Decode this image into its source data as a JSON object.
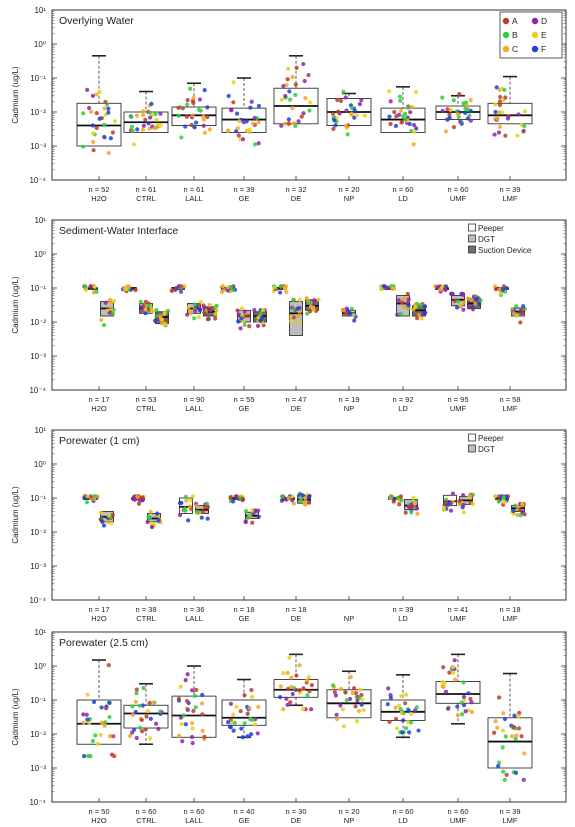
{
  "figure": {
    "ylabel": "Cadmium (ug/L)",
    "y_tick_labels": [
      "10⁻⁴",
      "10⁻³",
      "10⁻²",
      "10⁻¹",
      "10⁰",
      "10¹"
    ],
    "categories": [
      "H2O",
      "CTRL",
      "LALL",
      "GE",
      "DE",
      "NP",
      "LD",
      "UMF",
      "LMF"
    ],
    "site_legend": [
      {
        "label": "A",
        "color": "#c0392b"
      },
      {
        "label": "B",
        "color": "#2ecc40"
      },
      {
        "label": "C",
        "color": "#f5a623"
      },
      {
        "label": "D",
        "color": "#8e24aa"
      },
      {
        "label": "E",
        "color": "#e6d21a"
      },
      {
        "label": "F",
        "color": "#1f3fd6"
      }
    ]
  },
  "chart_data": [
    {
      "type": "box",
      "title": "Overlying Water",
      "ylabel": "Cadmium (ug/L)",
      "yscale": "log",
      "ylim": [
        0.0001,
        10
      ],
      "categories": [
        "H2O",
        "CTRL",
        "LALL",
        "GE",
        "DE",
        "NP",
        "LD",
        "UMF",
        "LMF"
      ],
      "n_labels": [
        "n = 52",
        "n = 61",
        "n = 61",
        "n = 39",
        "n = 32",
        "n = 20",
        "n = 60",
        "n = 60",
        "n = 39"
      ],
      "legend": [
        "A",
        "B",
        "C",
        "D",
        "E",
        "F"
      ],
      "legend_position": "top-right",
      "boxes": [
        {
          "category": "H2O",
          "q1": 0.001,
          "median": 0.004,
          "q3": 0.018,
          "whisker_high": 0.45
        },
        {
          "category": "CTRL",
          "q1": 0.0025,
          "median": 0.005,
          "q3": 0.01,
          "whisker_high": 0.04
        },
        {
          "category": "LALL",
          "q1": 0.004,
          "median": 0.008,
          "q3": 0.014,
          "whisker_high": 0.07
        },
        {
          "category": "GE",
          "q1": 0.0025,
          "median": 0.006,
          "q3": 0.013,
          "whisker_high": 0.1
        },
        {
          "category": "DE",
          "q1": 0.0045,
          "median": 0.015,
          "q3": 0.05,
          "whisker_high": 0.45
        },
        {
          "category": "NP",
          "q1": 0.004,
          "median": 0.01,
          "q3": 0.025,
          "whisker_high": 0.035
        },
        {
          "category": "LD",
          "q1": 0.0025,
          "median": 0.006,
          "q3": 0.013,
          "whisker_high": 0.055
        },
        {
          "category": "UMF",
          "q1": 0.006,
          "median": 0.01,
          "q3": 0.015,
          "whisker_high": 0.03
        },
        {
          "category": "LMF",
          "q1": 0.0045,
          "median": 0.008,
          "q3": 0.018,
          "whisker_high": 0.11
        }
      ]
    },
    {
      "type": "box",
      "title": "Sediment-Water Interface",
      "ylabel": "Cadmium (ug/L)",
      "yscale": "log",
      "ylim": [
        0.0001,
        10
      ],
      "categories": [
        "H2O",
        "CTRL",
        "LALL",
        "GE",
        "DE",
        "NP",
        "LD",
        "UMF",
        "LMF"
      ],
      "n_labels": [
        "n = 17",
        "n = 53",
        "n = 90",
        "n = 55",
        "n = 47",
        "n = 19",
        "n = 92",
        "n = 95",
        "n = 58"
      ],
      "legend": [
        "Peeper",
        "DGT",
        "Suction Device"
      ],
      "legend_position": "top-right",
      "boxes": [
        {
          "category": "H2O",
          "method": "Peeper",
          "q1": 0.1,
          "median": 0.1,
          "q3": 0.1
        },
        {
          "category": "H2O",
          "method": "DGT",
          "q1": 0.015,
          "median": 0.025,
          "q3": 0.04
        },
        {
          "category": "CTRL",
          "method": "Peeper",
          "q1": 0.1,
          "median": 0.1,
          "q3": 0.1
        },
        {
          "category": "CTRL",
          "method": "DGT",
          "q1": 0.018,
          "median": 0.025,
          "q3": 0.035
        },
        {
          "category": "CTRL",
          "method": "Suction Device",
          "q1": 0.009,
          "median": 0.014,
          "q3": 0.02
        },
        {
          "category": "LALL",
          "method": "Peeper",
          "q1": 0.1,
          "median": 0.1,
          "q3": 0.1
        },
        {
          "category": "LALL",
          "method": "DGT",
          "q1": 0.018,
          "median": 0.025,
          "q3": 0.035
        },
        {
          "category": "LALL",
          "method": "Suction Device",
          "q1": 0.015,
          "median": 0.02,
          "q3": 0.028
        },
        {
          "category": "GE",
          "method": "Peeper",
          "q1": 0.1,
          "median": 0.1,
          "q3": 0.1
        },
        {
          "category": "GE",
          "method": "DGT",
          "q1": 0.01,
          "median": 0.015,
          "q3": 0.022
        },
        {
          "category": "GE",
          "method": "Suction Device",
          "q1": 0.01,
          "median": 0.015,
          "q3": 0.02
        },
        {
          "category": "DE",
          "method": "Peeper",
          "q1": 0.1,
          "median": 0.1,
          "q3": 0.1
        },
        {
          "category": "DE",
          "method": "DGT",
          "q1": 0.004,
          "median": 0.018,
          "q3": 0.04
        },
        {
          "category": "DE",
          "method": "Suction Device",
          "q1": 0.022,
          "median": 0.03,
          "q3": 0.045
        },
        {
          "category": "NP",
          "method": "DGT",
          "q1": 0.015,
          "median": 0.018,
          "q3": 0.022
        },
        {
          "category": "LD",
          "method": "Peeper",
          "q1": 0.1,
          "median": 0.1,
          "q3": 0.1
        },
        {
          "category": "LD",
          "method": "DGT",
          "q1": 0.015,
          "median": 0.035,
          "q3": 0.06
        },
        {
          "category": "LD",
          "method": "Suction Device",
          "q1": 0.015,
          "median": 0.022,
          "q3": 0.03
        },
        {
          "category": "UMF",
          "method": "Peeper",
          "q1": 0.1,
          "median": 0.1,
          "q3": 0.1
        },
        {
          "category": "UMF",
          "method": "DGT",
          "q1": 0.03,
          "median": 0.045,
          "q3": 0.06
        },
        {
          "category": "UMF",
          "method": "Suction Device",
          "q1": 0.025,
          "median": 0.035,
          "q3": 0.05
        },
        {
          "category": "LMF",
          "method": "Peeper",
          "q1": 0.1,
          "median": 0.1,
          "q3": 0.1
        },
        {
          "category": "LMF",
          "method": "DGT",
          "q1": 0.015,
          "median": 0.02,
          "q3": 0.026
        }
      ]
    },
    {
      "type": "box",
      "title": "Porewater (1 cm)",
      "ylabel": "Cadmium (ug/L)",
      "yscale": "log",
      "ylim": [
        0.0001,
        10
      ],
      "categories": [
        "H2O",
        "CTRL",
        "LALL",
        "GE",
        "DE",
        "NP",
        "LD",
        "UMF",
        "LMF"
      ],
      "n_labels": [
        "n = 17",
        "n = 38",
        "n = 36",
        "n = 18",
        "n = 18",
        "",
        "n = 39",
        "n = 41",
        "n = 18"
      ],
      "legend": [
        "Peeper",
        "DGT"
      ],
      "legend_position": "top-right",
      "boxes": [
        {
          "category": "H2O",
          "method": "Peeper",
          "q1": 0.1,
          "median": 0.1,
          "q3": 0.1
        },
        {
          "category": "H2O",
          "method": "DGT",
          "q1": 0.02,
          "median": 0.028,
          "q3": 0.04
        },
        {
          "category": "CTRL",
          "method": "Peeper",
          "q1": 0.1,
          "median": 0.1,
          "q3": 0.1
        },
        {
          "category": "CTRL",
          "method": "DGT",
          "q1": 0.02,
          "median": 0.025,
          "q3": 0.035
        },
        {
          "category": "LALL",
          "method": "Peeper",
          "q1": 0.035,
          "median": 0.055,
          "q3": 0.1
        },
        {
          "category": "LALL",
          "method": "DGT",
          "q1": 0.035,
          "median": 0.045,
          "q3": 0.06
        },
        {
          "category": "GE",
          "method": "Peeper",
          "q1": 0.1,
          "median": 0.1,
          "q3": 0.1
        },
        {
          "category": "GE",
          "method": "DGT",
          "q1": 0.025,
          "median": 0.03,
          "q3": 0.038
        },
        {
          "category": "DE",
          "method": "Peeper",
          "q1": 0.1,
          "median": 0.1,
          "q3": 0.1
        },
        {
          "category": "DE",
          "method": "DGT",
          "q1": 0.07,
          "median": 0.09,
          "q3": 0.12
        },
        {
          "category": "LD",
          "method": "Peeper",
          "q1": 0.1,
          "median": 0.1,
          "q3": 0.1
        },
        {
          "category": "LD",
          "method": "DGT",
          "q1": 0.045,
          "median": 0.06,
          "q3": 0.09
        },
        {
          "category": "UMF",
          "method": "Peeper",
          "q1": 0.06,
          "median": 0.08,
          "q3": 0.12
        },
        {
          "category": "UMF",
          "method": "DGT",
          "q1": 0.065,
          "median": 0.085,
          "q3": 0.11
        },
        {
          "category": "LMF",
          "method": "Peeper",
          "q1": 0.1,
          "median": 0.1,
          "q3": 0.1
        },
        {
          "category": "LMF",
          "method": "DGT",
          "q1": 0.04,
          "median": 0.05,
          "q3": 0.06
        }
      ]
    },
    {
      "type": "box",
      "title": "Porewater (2.5 cm)",
      "ylabel": "Cadmium (ug/L)",
      "yscale": "log",
      "ylim": [
        0.0001,
        10
      ],
      "categories": [
        "H2O",
        "CTRL",
        "LALL",
        "GE",
        "DE",
        "NP",
        "LD",
        "UMF",
        "LMF"
      ],
      "n_labels": [
        "n = 50",
        "n = 60",
        "n = 60",
        "n = 40",
        "n = 30",
        "n = 20",
        "n = 60",
        "n = 60",
        "n = 39"
      ],
      "boxes": [
        {
          "category": "H2O",
          "q1": 0.005,
          "median": 0.02,
          "q3": 0.1,
          "whisker_low": 0.005,
          "whisker_high": 1.5
        },
        {
          "category": "CTRL",
          "q1": 0.015,
          "median": 0.04,
          "q3": 0.07,
          "whisker_low": 0.005,
          "whisker_high": 0.3
        },
        {
          "category": "LALL",
          "q1": 0.008,
          "median": 0.035,
          "q3": 0.13,
          "whisker_low": 0.008,
          "whisker_high": 1.0
        },
        {
          "category": "GE",
          "q1": 0.018,
          "median": 0.03,
          "q3": 0.1,
          "whisker_low": 0.008,
          "whisker_high": 0.4
        },
        {
          "category": "DE",
          "q1": 0.12,
          "median": 0.2,
          "q3": 0.4,
          "whisker_low": 0.07,
          "whisker_high": 2.2
        },
        {
          "category": "NP",
          "q1": 0.03,
          "median": 0.08,
          "q3": 0.2,
          "whisker_low": 0.03,
          "whisker_high": 0.7
        },
        {
          "category": "LD",
          "q1": 0.025,
          "median": 0.045,
          "q3": 0.1,
          "whisker_low": 0.008,
          "whisker_high": 0.55
        },
        {
          "category": "UMF",
          "q1": 0.08,
          "median": 0.15,
          "q3": 0.35,
          "whisker_low": 0.02,
          "whisker_high": 2.2
        },
        {
          "category": "LMF",
          "q1": 0.001,
          "median": 0.006,
          "q3": 0.03,
          "whisker_low": 0.001,
          "whisker_high": 0.6
        }
      ]
    }
  ]
}
